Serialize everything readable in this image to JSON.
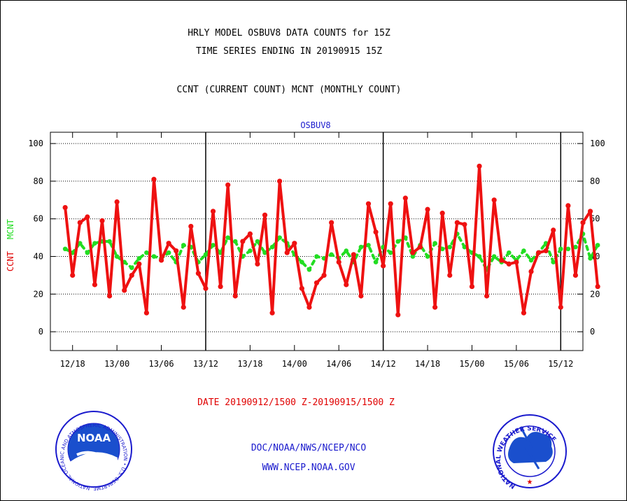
{
  "header": {
    "line1": "HRLY MODEL OSBUV8 DATA COUNTS for 15Z",
    "line2": "TIME SERIES ENDING IN 20190915 15Z",
    "line3": "CCNT (CURRENT COUNT) MCNT (MONTHLY COUNT)"
  },
  "footer": {
    "date_range": "DATE 20190912/1500 Z-20190915/1500 Z",
    "org": "DOC/NOAA/NWS/NCEP/NCO",
    "url": "WWW.NCEP.NOAA.GOV"
  },
  "logos": {
    "noaa": {
      "center": "NOAA",
      "ring": "NATIONAL OCEANIC AND ATMOSPHERIC ADMINISTRATION • U.S. DEPARTMENT OF COMMERCE •"
    },
    "nws": {
      "ring": "NATIONAL WEATHER SERVICE"
    }
  },
  "colors": {
    "ccnt": "#ee1111",
    "mcnt": "#22dd22",
    "accent_blue": "#1a1acd"
  },
  "chart_data": {
    "type": "line",
    "title": "OSBUV8",
    "ylabel_ccnt": "CCNT",
    "ylabel_mcnt": "MCNT",
    "ylim": [
      -10,
      106
    ],
    "yticks": [
      0,
      20,
      40,
      60,
      80,
      100
    ],
    "xlim": [
      -2,
      70
    ],
    "xticks": [
      {
        "x": 1,
        "label": "12/18"
      },
      {
        "x": 7,
        "label": "13/00"
      },
      {
        "x": 13,
        "label": "13/06"
      },
      {
        "x": 19,
        "label": "13/12"
      },
      {
        "x": 25,
        "label": "13/18"
      },
      {
        "x": 31,
        "label": "14/00"
      },
      {
        "x": 37,
        "label": "14/06"
      },
      {
        "x": 43,
        "label": "14/12"
      },
      {
        "x": 49,
        "label": "14/18"
      },
      {
        "x": 55,
        "label": "15/00"
      },
      {
        "x": 61,
        "label": "15/06"
      },
      {
        "x": 67,
        "label": "15/12"
      }
    ],
    "day_dividers": [
      19,
      43,
      67
    ],
    "grid": true,
    "series": [
      {
        "name": "CCNT",
        "values": [
          66,
          30,
          58,
          61,
          25,
          59,
          19,
          69,
          22,
          30,
          36,
          10,
          81,
          38,
          47,
          43,
          13,
          56,
          31,
          23,
          64,
          24,
          78,
          19,
          48,
          52,
          36,
          62,
          10,
          80,
          42,
          47,
          23,
          13,
          26,
          30,
          58,
          37,
          25,
          41,
          19,
          68,
          53,
          35,
          68,
          9,
          71,
          42,
          45,
          65,
          13,
          63,
          30,
          58,
          57,
          24,
          88,
          19,
          70,
          38,
          36,
          37,
          10,
          32,
          42,
          43,
          54,
          13,
          67,
          30,
          58,
          64,
          24
        ]
      },
      {
        "name": "MCNT",
        "values": [
          44,
          42,
          47,
          42,
          47,
          48,
          48,
          40,
          37,
          34,
          39,
          42,
          40,
          39,
          42,
          37,
          46,
          45,
          37,
          41,
          46,
          42,
          50,
          48,
          40,
          43,
          48,
          42,
          45,
          50,
          47,
          41,
          37,
          33,
          40,
          39,
          41,
          39,
          43,
          37,
          45,
          46,
          37,
          45,
          42,
          48,
          50,
          40,
          46,
          40,
          47,
          44,
          45,
          52,
          45,
          42,
          40,
          33,
          40,
          37,
          42,
          38,
          43,
          38,
          42,
          47,
          37,
          44,
          44,
          45,
          52,
          39,
          46
        ]
      }
    ]
  }
}
